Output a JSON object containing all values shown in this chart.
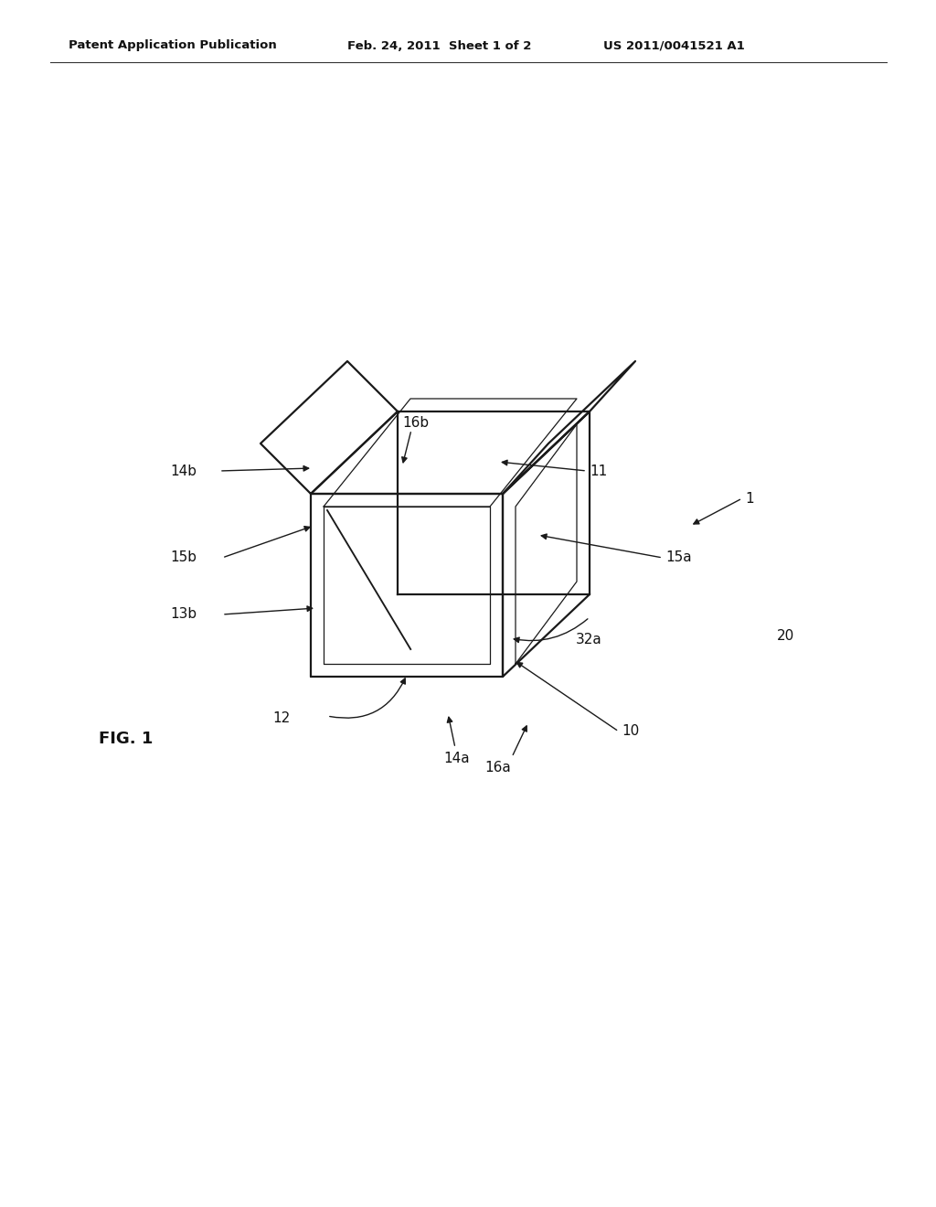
{
  "header_left": "Patent Application Publication",
  "header_mid": "Feb. 24, 2011  Sheet 1 of 2",
  "header_right": "US 2011/0041521 A1",
  "fig_label": "FIG. 1",
  "bg_color": "#ffffff",
  "line_color": "#1a1a1a"
}
